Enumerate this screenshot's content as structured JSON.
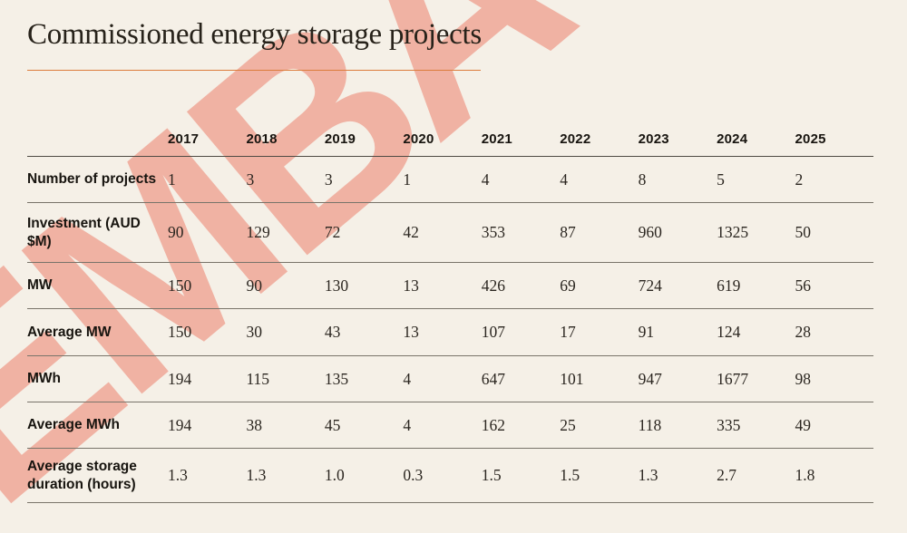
{
  "title": "Commissioned energy storage projects",
  "watermark_text": "EMBA",
  "colors": {
    "background": "#f5f0e7",
    "accent_rule": "#dc7c3b",
    "watermark": "#f0b2a3",
    "text": "#27221a",
    "row_line": "#79746a",
    "header_line": "#4e4a43"
  },
  "chart_data": {
    "type": "table",
    "title": "Commissioned energy storage projects",
    "columns": [
      "2017",
      "2018",
      "2019",
      "2020",
      "2021",
      "2022",
      "2023",
      "2024",
      "2025"
    ],
    "rows": [
      {
        "label": "Number of projects",
        "values": [
          "1",
          "3",
          "3",
          "1",
          "4",
          "4",
          "8",
          "5",
          "2"
        ]
      },
      {
        "label": "Investment (AUD $M)",
        "values": [
          "90",
          "129",
          "72",
          "42",
          "353",
          "87",
          "960",
          "1325",
          "50"
        ]
      },
      {
        "label": "MW",
        "values": [
          "150",
          "90",
          "130",
          "13",
          "426",
          "69",
          "724",
          "619",
          "56"
        ]
      },
      {
        "label": "Average MW",
        "values": [
          "150",
          "30",
          "43",
          "13",
          "107",
          "17",
          "91",
          "124",
          "28"
        ]
      },
      {
        "label": "MWh",
        "values": [
          "194",
          "115",
          "135",
          "4",
          "647",
          "101",
          "947",
          "1677",
          "98"
        ]
      },
      {
        "label": "Average MWh",
        "values": [
          "194",
          "38",
          "45",
          "4",
          "162",
          "25",
          "118",
          "335",
          "49"
        ]
      },
      {
        "label": "Average storage duration (hours)",
        "values": [
          "1.3",
          "1.3",
          "1.0",
          "0.3",
          "1.5",
          "1.5",
          "1.3",
          "2.7",
          "1.8"
        ]
      }
    ]
  }
}
